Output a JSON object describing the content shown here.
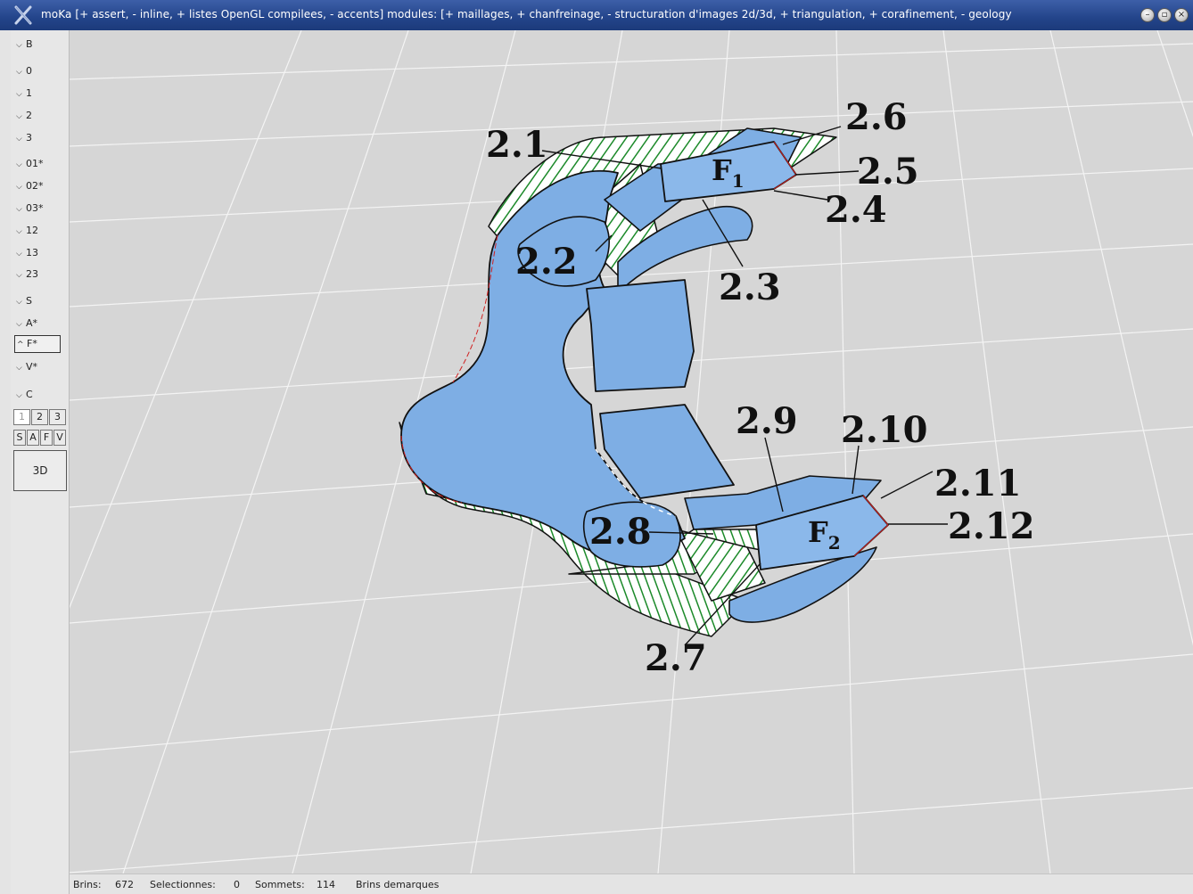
{
  "window": {
    "title": "moKa [+ assert, - inline, + listes OpenGL compilees, - accents] modules: [+ maillages, + chanfreinage, - structuration d'images 2d/3d, + triangulation, + corafinement, - geology",
    "app_icon": "x-icon",
    "controls": [
      "minimize-icon",
      "restore-icon",
      "close-icon"
    ]
  },
  "panel": {
    "items": [
      {
        "id": "b",
        "label": "B",
        "state": "collapsed"
      },
      {
        "id": "0",
        "label": "0",
        "state": "collapsed"
      },
      {
        "id": "1",
        "label": "1",
        "state": "collapsed"
      },
      {
        "id": "2",
        "label": "2",
        "state": "collapsed"
      },
      {
        "id": "3",
        "label": "3",
        "state": "collapsed"
      },
      {
        "id": "01",
        "label": "01*",
        "state": "collapsed"
      },
      {
        "id": "02",
        "label": "02*",
        "state": "collapsed"
      },
      {
        "id": "03",
        "label": "03*",
        "state": "collapsed"
      },
      {
        "id": "12",
        "label": "12",
        "state": "collapsed"
      },
      {
        "id": "13",
        "label": "13",
        "state": "collapsed"
      },
      {
        "id": "23",
        "label": "23",
        "state": "collapsed"
      },
      {
        "id": "s",
        "label": "S",
        "state": "collapsed"
      },
      {
        "id": "a",
        "label": "A*",
        "state": "collapsed"
      },
      {
        "id": "f",
        "label": "F*",
        "state": "expanded"
      },
      {
        "id": "v",
        "label": "V*",
        "state": "collapsed"
      },
      {
        "id": "c",
        "label": "C",
        "state": "collapsed"
      }
    ],
    "modes": [
      "1",
      "2",
      "3"
    ],
    "selected_mode": "1",
    "directions": [
      "S",
      "A",
      "F",
      "V"
    ],
    "view_button": "3D"
  },
  "labels": {
    "l21": "2.1",
    "l22": "2.2",
    "l23": "2.3",
    "l24": "2.4",
    "l25": "2.5",
    "l26": "2.6",
    "l27": "2.7",
    "l28": "2.8",
    "l29": "2.9",
    "l210": "2.10",
    "l211": "2.11",
    "l212": "2.12",
    "f1_base": "F",
    "f1_sub": "1",
    "f2_base": "F",
    "f2_sub": "2"
  },
  "colors": {
    "surface": "#7eaee4",
    "hatch": "#1c8a2a",
    "edge": "#111111",
    "seam": "#d02020",
    "grid": "#f2f2f2"
  },
  "status": {
    "brins_label": "Brins:",
    "brins_value": "672",
    "selectionnes_label": "Selectionnes:",
    "selectionnes_value": "0",
    "sommets_label": "Sommets:",
    "sommets_value": "114",
    "brins_demarques": "Brins demarques"
  }
}
